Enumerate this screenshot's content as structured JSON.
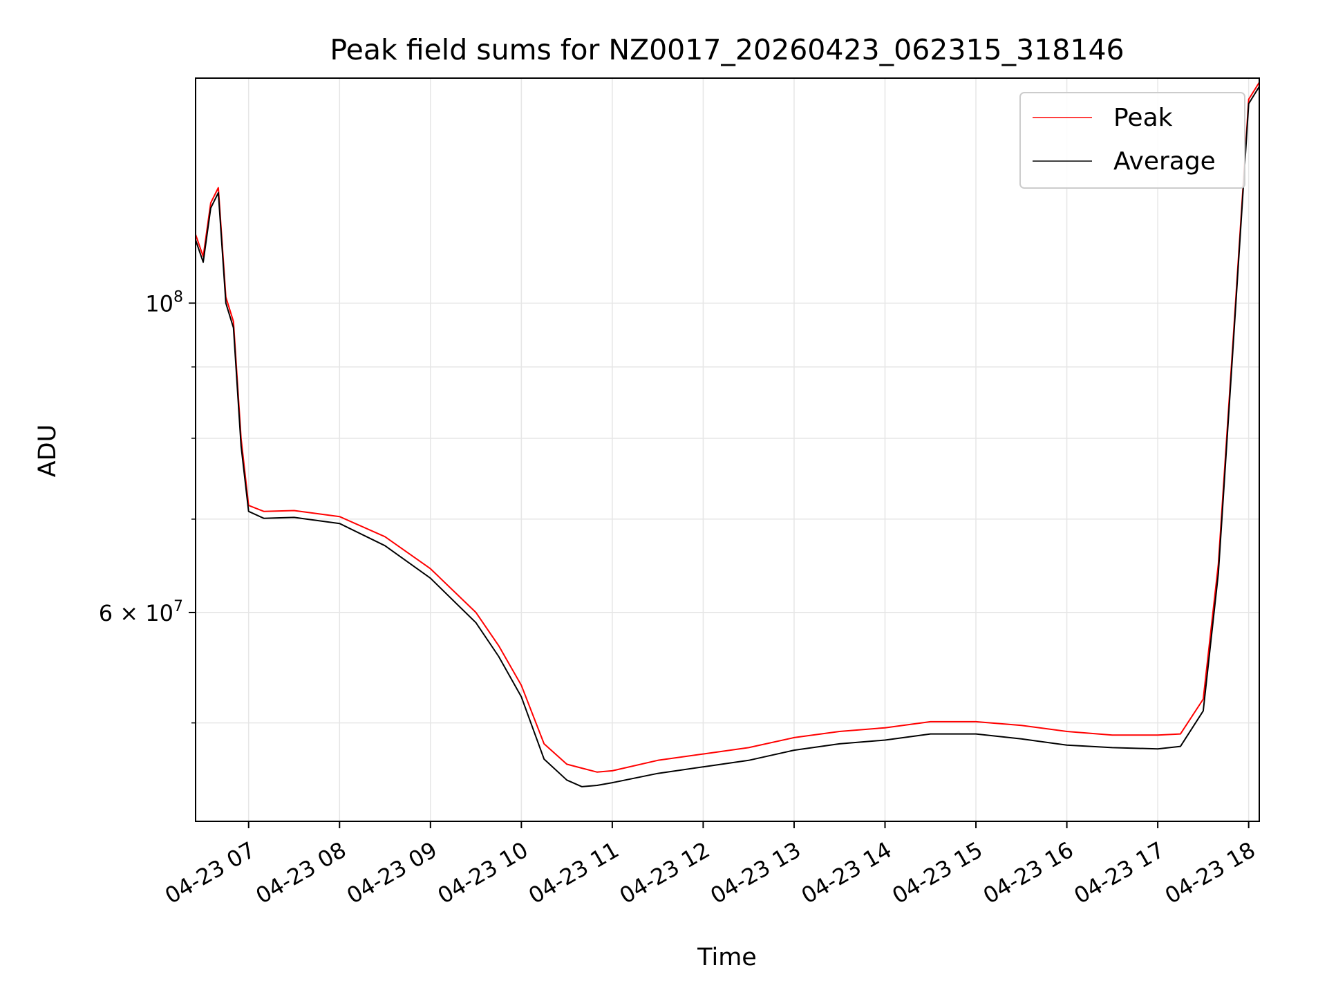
{
  "chart_data": {
    "type": "line",
    "title": "Peak field sums for NZ0017_20260423_062315_318146",
    "xlabel": "Time",
    "ylabel": "ADU",
    "x_ticks": [
      "04-23 07",
      "04-23 08",
      "04-23 09",
      "04-23 10",
      "04-23 11",
      "04-23 12",
      "04-23 13",
      "04-23 14",
      "04-23 15",
      "04-23 16",
      "04-23 17",
      "04-23 18"
    ],
    "y_tick_labels": [
      {
        "value": 100000000,
        "base": "10",
        "exp": "8"
      },
      {
        "value": 60000000,
        "base": "6 × 10",
        "exp": "7"
      }
    ],
    "y_scale": "log",
    "ylim": [
      42500000,
      145000000
    ],
    "xlim": [
      "2026-04-23 06:25",
      "2026-04-23 18:07"
    ],
    "grid": true,
    "legend_position": "top-right",
    "series": [
      {
        "name": "Peak",
        "color": "#ff0000",
        "x": [
          "06:25",
          "06:30",
          "06:35",
          "06:40",
          "06:45",
          "06:50",
          "06:55",
          "07:00",
          "07:10",
          "07:30",
          "08:00",
          "08:30",
          "09:00",
          "09:30",
          "09:45",
          "10:00",
          "10:15",
          "10:30",
          "10:40",
          "10:50",
          "11:00",
          "11:30",
          "12:00",
          "12:30",
          "13:00",
          "13:30",
          "14:00",
          "14:30",
          "15:00",
          "15:30",
          "16:00",
          "16:30",
          "17:00",
          "17:15",
          "17:30",
          "17:40",
          "17:50",
          "18:00",
          "18:07"
        ],
        "y": [
          112000000,
          108000000,
          118000000,
          121000000,
          101000000,
          97000000,
          80000000,
          71600000,
          70900000,
          71000000,
          70300000,
          68000000,
          64500000,
          60000000,
          56800000,
          53200000,
          48300000,
          46700000,
          46400000,
          46100000,
          46200000,
          47000000,
          47500000,
          48000000,
          48800000,
          49300000,
          49600000,
          50100000,
          50100000,
          49800000,
          49300000,
          49000000,
          49000000,
          49100000,
          52000000,
          65000000,
          95000000,
          140000000,
          144000000
        ]
      },
      {
        "name": "Average",
        "color": "#000000",
        "x": [
          "06:25",
          "06:30",
          "06:35",
          "06:40",
          "06:45",
          "06:50",
          "06:55",
          "07:00",
          "07:10",
          "07:30",
          "08:00",
          "08:30",
          "09:00",
          "09:30",
          "09:45",
          "10:00",
          "10:15",
          "10:30",
          "10:40",
          "10:50",
          "11:00",
          "11:30",
          "12:00",
          "12:30",
          "13:00",
          "13:30",
          "14:00",
          "14:30",
          "15:00",
          "15:30",
          "16:00",
          "16:30",
          "17:00",
          "17:15",
          "17:30",
          "17:40",
          "17:50",
          "18:00",
          "18:07"
        ],
        "y": [
          111000000,
          107000000,
          117000000,
          120000000,
          100000000,
          96000000,
          79000000,
          70900000,
          70100000,
          70200000,
          69500000,
          67000000,
          63500000,
          59000000,
          55800000,
          52200000,
          47100000,
          45500000,
          45000000,
          45100000,
          45300000,
          46000000,
          46500000,
          47000000,
          47800000,
          48300000,
          48600000,
          49100000,
          49100000,
          48700000,
          48200000,
          48000000,
          47900000,
          48100000,
          51000000,
          64000000,
          94000000,
          139000000,
          143000000
        ]
      }
    ]
  }
}
